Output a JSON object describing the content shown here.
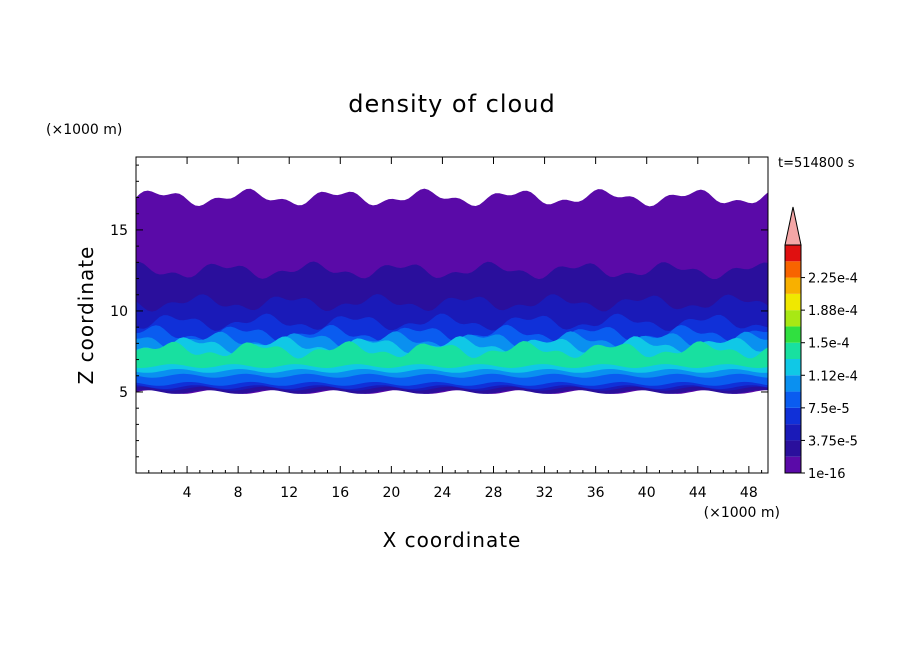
{
  "chart_data": {
    "type": "heatmap",
    "title": "density of cloud",
    "xlabel": "X coordinate",
    "ylabel": "Z coordinate",
    "x_unit": "(×1000 m)",
    "y_unit": "(×1000 m)",
    "time_label": "t=514800 s",
    "xlim": [
      0,
      49.5
    ],
    "ylim": [
      0,
      19.5
    ],
    "x_ticks": [
      "4",
      "8",
      "12",
      "16",
      "20",
      "24",
      "28",
      "32",
      "36",
      "40",
      "44",
      "48"
    ],
    "y_ticks": [
      "5",
      "10",
      "15"
    ],
    "colorbar": {
      "labels": [
        "1e-16",
        "3.75e-5",
        "7.5e-5",
        "1.12e-4",
        "1.5e-4",
        "1.88e-4",
        "2.25e-4"
      ],
      "levels": [
        1e-16,
        1.875e-05,
        3.75e-05,
        5.625e-05,
        7.5e-05,
        9.375e-05,
        0.0001125,
        0.00013125,
        0.00015,
        0.00016875,
        0.0001875,
        0.00020625,
        0.000225,
        0.00024375
      ],
      "colors": [
        "#5a0aa8",
        "#2a0f9c",
        "#1a1ab8",
        "#1030d8",
        "#0a5cf0",
        "#0a90f0",
        "#10c8e6",
        "#18e0a0",
        "#30e040",
        "#a8e814",
        "#f0e800",
        "#f8b000",
        "#f86400",
        "#e01010"
      ],
      "overflow_color": "#f4a6a6"
    },
    "cloud_layers": [
      {
        "z_bottom": 5.0,
        "z_top": 17.0,
        "value": 1e-16
      },
      {
        "z_bottom": 5.0,
        "z_top": 12.5,
        "value": 1.875e-05
      },
      {
        "z_bottom": 5.2,
        "z_top": 10.5,
        "value": 3.75e-05
      },
      {
        "z_bottom": 5.3,
        "z_top": 9.3,
        "value": 5.625e-05
      },
      {
        "z_bottom": 5.5,
        "z_top": 8.6,
        "value": 7.5e-05
      },
      {
        "z_bottom": 6.0,
        "z_top": 8.2,
        "value": 9.375e-05
      },
      {
        "z_bottom": 6.3,
        "z_top": 7.9,
        "value": 0.0001125
      },
      {
        "z_bottom": 6.6,
        "z_top": 7.6,
        "value": 0.00013125
      }
    ]
  }
}
